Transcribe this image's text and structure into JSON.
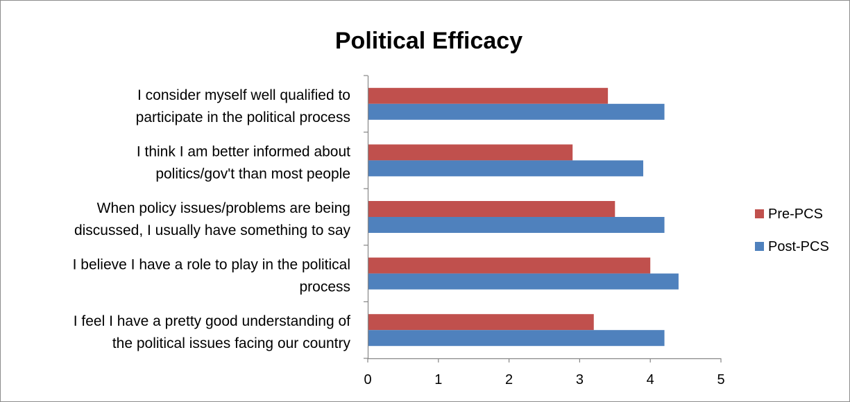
{
  "colors": {
    "pre": "#c0504d",
    "post": "#4f81bd",
    "axis": "#868686"
  },
  "chart_data": {
    "type": "bar",
    "orientation": "horizontal",
    "title": "Political Efficacy",
    "categories": [
      [
        "I consider myself well qualified to",
        "participate in the political process"
      ],
      [
        "I think I am better informed about",
        "politics/gov't than most people"
      ],
      [
        "When policy issues/problems are being",
        "discussed, I usually have something to say"
      ],
      [
        "I believe I have a role to play in the political",
        "process"
      ],
      [
        "I feel I have a pretty good understanding of",
        "the political issues facing our country"
      ]
    ],
    "series": [
      {
        "name": "Pre-PCS",
        "values": [
          3.4,
          2.9,
          3.5,
          4.0,
          3.2
        ]
      },
      {
        "name": "Post-PCS",
        "values": [
          4.2,
          3.9,
          4.2,
          4.4,
          4.2
        ]
      }
    ],
    "xlim": [
      0,
      5
    ],
    "xticks": [
      "0",
      "1",
      "2",
      "3",
      "4",
      "5"
    ],
    "grid": false,
    "legend_position": "right"
  }
}
